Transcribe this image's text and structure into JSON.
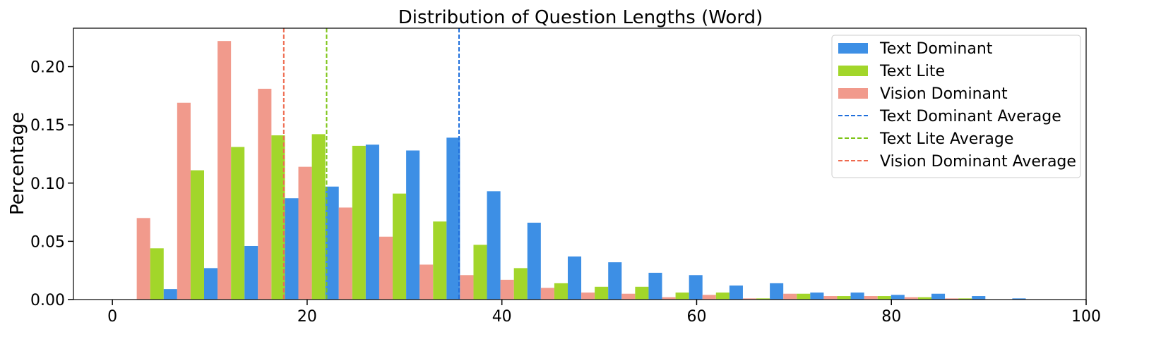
{
  "chart_data": {
    "type": "bar",
    "title": "Distribution of Question Lengths (Word)",
    "xlabel": "",
    "ylabel": "Percentage",
    "xlim": [
      -4,
      100
    ],
    "ylim": [
      0,
      0.233
    ],
    "xticks": [
      0,
      20,
      40,
      60,
      80,
      100
    ],
    "yticks": [
      0.0,
      0.05,
      0.1,
      0.15,
      0.2
    ],
    "ytick_labels": [
      "0.00",
      "0.05",
      "0.10",
      "0.15",
      "0.20"
    ],
    "bin_edges": [
      2.5,
      6.65,
      10.8,
      14.95,
      19.1,
      23.25,
      27.4,
      31.55,
      35.7,
      39.85,
      44.0,
      48.15,
      52.3,
      56.45,
      60.6,
      64.75,
      68.9,
      73.05,
      77.2,
      81.35,
      85.5,
      89.65,
      93.8,
      97.95
    ],
    "series": [
      {
        "name": "Vision Dominant",
        "color": "#f19a8c",
        "values": [
          0.07,
          0.169,
          0.222,
          0.181,
          0.114,
          0.079,
          0.054,
          0.03,
          0.021,
          0.017,
          0.01,
          0.006,
          0.005,
          0.002,
          0.004,
          0.001,
          0.005,
          0.003,
          0.003,
          0.002,
          0.001,
          0.0,
          0.0
        ]
      },
      {
        "name": "Text Lite",
        "color": "#a2d62a",
        "values": [
          0.044,
          0.111,
          0.131,
          0.141,
          0.142,
          0.132,
          0.091,
          0.067,
          0.047,
          0.027,
          0.014,
          0.011,
          0.011,
          0.006,
          0.006,
          0.001,
          0.005,
          0.003,
          0.003,
          0.002,
          0.001,
          0.0,
          0.0
        ]
      },
      {
        "name": "Text Dominant",
        "color": "#3d8fe5",
        "values": [
          0.009,
          0.027,
          0.046,
          0.087,
          0.097,
          0.133,
          0.128,
          0.139,
          0.093,
          0.066,
          0.037,
          0.032,
          0.023,
          0.021,
          0.012,
          0.014,
          0.006,
          0.006,
          0.004,
          0.005,
          0.003,
          0.001,
          0.0
        ]
      }
    ],
    "averages": [
      {
        "name": "Text Dominant Average",
        "x": 35.6,
        "color": "#1f6fdc"
      },
      {
        "name": "Text Lite Average",
        "x": 22.0,
        "color": "#7cc415"
      },
      {
        "name": "Vision Dominant Average",
        "x": 17.6,
        "color": "#ee6a4f"
      }
    ],
    "legend": {
      "placement": "top-right",
      "entries": [
        {
          "label": "Text Dominant",
          "kind": "bar",
          "color": "#3d8fe5"
        },
        {
          "label": "Text Lite",
          "kind": "bar",
          "color": "#a2d62a"
        },
        {
          "label": "Vision Dominant",
          "kind": "bar",
          "color": "#f19a8c"
        },
        {
          "label": "Text Dominant Average",
          "kind": "dashed",
          "color": "#1f6fdc"
        },
        {
          "label": "Text Lite Average",
          "kind": "dashed",
          "color": "#7cc415"
        },
        {
          "label": "Vision Dominant Average",
          "kind": "dashed",
          "color": "#ee6a4f"
        }
      ]
    },
    "grid": false
  }
}
